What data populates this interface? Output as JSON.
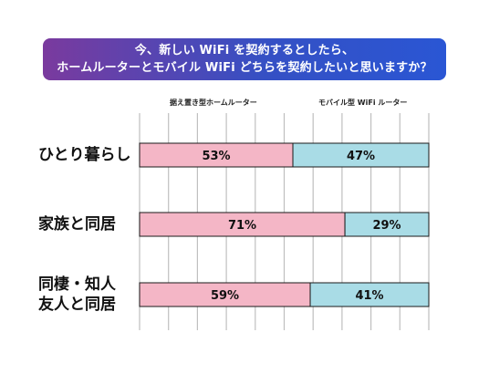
{
  "title": {
    "line1": "今、新しい WiFi を契約するとしたら、",
    "line2": "ホームルーターとモバイル WiFi どちらを契約したいと思いますか？"
  },
  "colors": {
    "series1": "#f4b6c6",
    "series2": "#a9dce6",
    "grid": "#bfbfbf",
    "outline": "#1a1a1a"
  },
  "chart_data": {
    "type": "bar",
    "orientation": "horizontal",
    "stacked": true,
    "title": "今、新しい WiFi を契約するとしたら、ホームルーターとモバイル WiFi どちらを契約したいと思いますか？",
    "categories": [
      "ひとり暮らし",
      "家族と同居",
      "同棲・知人友人と同居"
    ],
    "category_lines": [
      [
        "ひとり暮らし"
      ],
      [
        "家族と同居"
      ],
      [
        "同棲・知人",
        "友人と同居"
      ]
    ],
    "series": [
      {
        "name": "据え置き型ホームルーター",
        "values": [
          53,
          71,
          59
        ]
      },
      {
        "name": "モバイル型 WiFi ルーター",
        "values": [
          47,
          29,
          41
        ]
      }
    ],
    "data_labels": [
      [
        "53%",
        "71%",
        "59%"
      ],
      [
        "47%",
        "29%",
        "41%"
      ]
    ],
    "xlim": [
      0,
      100
    ],
    "grid": true,
    "legend_position": "top"
  }
}
